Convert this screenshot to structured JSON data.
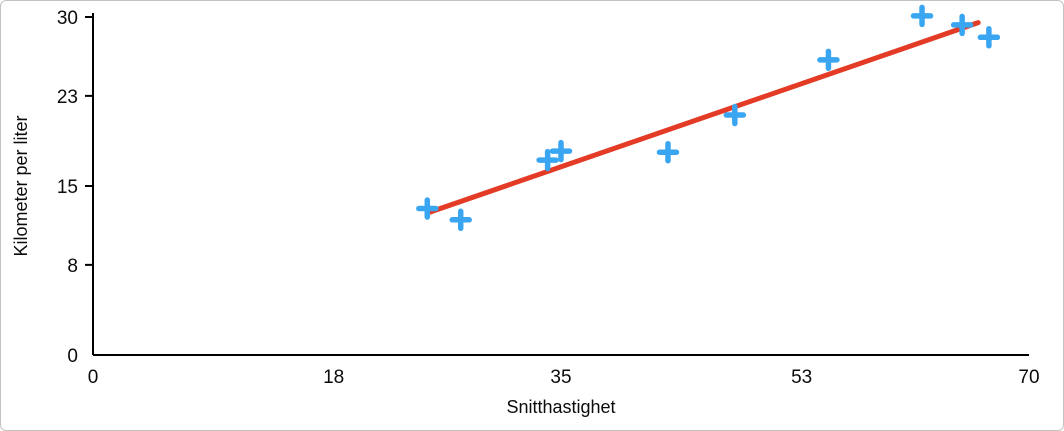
{
  "chart_data": {
    "type": "scatter",
    "title": "",
    "xlabel": "Snitthastighet",
    "ylabel": "Kilometer per liter",
    "xlim": [
      0,
      70
    ],
    "ylim": [
      0,
      30
    ],
    "x_ticks": [
      0,
      18,
      35,
      53,
      70
    ],
    "y_ticks": [
      0,
      8,
      15,
      23,
      30
    ],
    "grid": false,
    "legend": false,
    "axis_color": "#000000",
    "tick_font_size": 19,
    "axis_label_font_size": 18,
    "series": [
      {
        "name": "Kilometer per liter",
        "marker": "plus",
        "marker_color": "#3aa6f2",
        "marker_size": 17,
        "points": [
          {
            "x": 25,
            "y": 13.0
          },
          {
            "x": 27.5,
            "y": 12.0
          },
          {
            "x": 34,
            "y": 17.3
          },
          {
            "x": 35,
            "y": 18.1
          },
          {
            "x": 43,
            "y": 18.0
          },
          {
            "x": 48,
            "y": 21.3
          },
          {
            "x": 55,
            "y": 26.2
          },
          {
            "x": 62,
            "y": 30.1
          },
          {
            "x": 65,
            "y": 29.3
          },
          {
            "x": 67,
            "y": 28.2
          }
        ]
      }
    ],
    "trendline": {
      "color": "#e33b26",
      "width": 5,
      "from": {
        "x": 25,
        "y": 12.6
      },
      "to": {
        "x": 66.2,
        "y": 29.5
      }
    }
  }
}
